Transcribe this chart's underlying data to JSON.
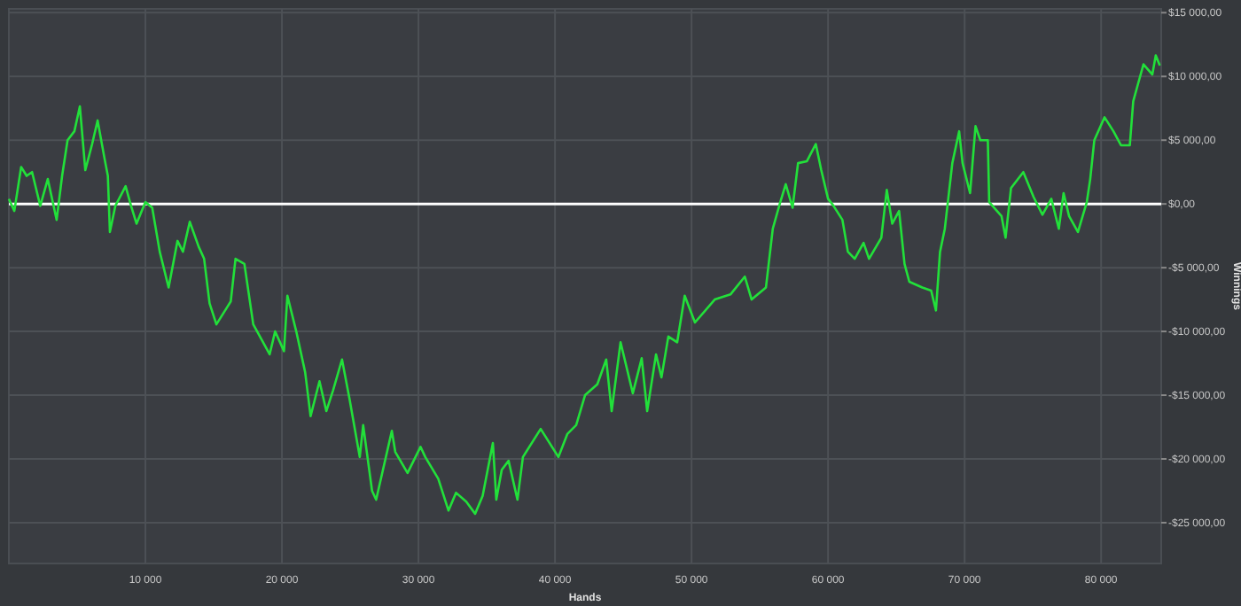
{
  "chart_data": {
    "type": "line",
    "xlabel": "Hands",
    "ylabel": "Winnings",
    "xlim": [
      0,
      84400
    ],
    "ylim": [
      -28200,
      15300
    ],
    "xticks": [
      {
        "value": 10000,
        "label": "10 000"
      },
      {
        "value": 20000,
        "label": "20 000"
      },
      {
        "value": 30000,
        "label": "30 000"
      },
      {
        "value": 40000,
        "label": "40 000"
      },
      {
        "value": 50000,
        "label": "50 000"
      },
      {
        "value": 60000,
        "label": "60 000"
      },
      {
        "value": 70000,
        "label": "70 000"
      },
      {
        "value": 80000,
        "label": "80 000"
      }
    ],
    "yticks": [
      {
        "value": 15000,
        "label": "$15 000,00"
      },
      {
        "value": 10000,
        "label": "$10 000,00"
      },
      {
        "value": 5000,
        "label": "$5 000,00"
      },
      {
        "value": 0,
        "label": "$0,00"
      },
      {
        "value": -5000,
        "label": "-$5 000,00"
      },
      {
        "value": -10000,
        "label": "-$10 000,00"
      },
      {
        "value": -15000,
        "label": "-$15 000,00"
      },
      {
        "value": -20000,
        "label": "-$20 000,00"
      },
      {
        "value": -25000,
        "label": "-$25 000,00"
      }
    ],
    "grid": true,
    "marker": "none",
    "line_style": "solid",
    "ref_lines": [
      {
        "axis": "y",
        "value": 0,
        "color": "#ffffff"
      }
    ],
    "series": [
      {
        "color": "#22e03a",
        "x": [
          0,
          400,
          900,
          1300,
          1700,
          2300,
          2850,
          3500,
          3900,
          4300,
          4800,
          5200,
          5600,
          6100,
          6500,
          7000,
          7250,
          7400,
          7800,
          8550,
          8950,
          9350,
          10000,
          10500,
          11050,
          11700,
          12350,
          12750,
          13250,
          13900,
          14300,
          14700,
          15200,
          16250,
          16600,
          17250,
          17900,
          19100,
          19500,
          20150,
          20400,
          21050,
          21700,
          22100,
          22750,
          23250,
          23750,
          24400,
          24950,
          25700,
          25950,
          26600,
          26900,
          28050,
          28300,
          29200,
          30150,
          30500,
          31450,
          32200,
          32750,
          33500,
          34150,
          34700,
          35450,
          35700,
          36100,
          36600,
          37250,
          37650,
          38950,
          40250,
          40900,
          41550,
          42200,
          43100,
          43750,
          44150,
          44650,
          44800,
          45700,
          46350,
          46750,
          47400,
          47800,
          48300,
          48950,
          49500,
          50250,
          51700,
          52850,
          53900,
          54400,
          55450,
          55950,
          56500,
          56900,
          57400,
          57800,
          58450,
          59100,
          59500,
          60000,
          60400,
          61050,
          61450,
          61950,
          62600,
          63000,
          63900,
          64300,
          64700,
          65200,
          65600,
          65950,
          66900,
          67550,
          67900,
          68200,
          68550,
          69100,
          69600,
          69850,
          70400,
          70800,
          71150,
          71700,
          71800,
          72700,
          73000,
          73400,
          74300,
          75050,
          75700,
          76350,
          76900,
          77250,
          77650,
          78300,
          78950,
          79200,
          79500,
          80250,
          80900,
          81450,
          82100,
          82350,
          82750,
          83100,
          83750,
          84000,
          84300
        ],
        "values": [
          400,
          -550,
          2900,
          2200,
          2500,
          -150,
          1950,
          -1250,
          2200,
          5000,
          5700,
          7650,
          2650,
          4700,
          6550,
          3600,
          2200,
          -2200,
          -150,
          1400,
          -150,
          -1550,
          150,
          -300,
          -3750,
          -6550,
          -2900,
          -3750,
          -1400,
          -3350,
          -4300,
          -7800,
          -9450,
          -7650,
          -4300,
          -4700,
          -9450,
          -11800,
          -10000,
          -11550,
          -7200,
          -10000,
          -13200,
          -16650,
          -13900,
          -16250,
          -14600,
          -12200,
          -15300,
          -19850,
          -17350,
          -22500,
          -23200,
          -17800,
          -19450,
          -21100,
          -19050,
          -19850,
          -21550,
          -24050,
          -22650,
          -23350,
          -24300,
          -22900,
          -18750,
          -23200,
          -20850,
          -20150,
          -23200,
          -19850,
          -17650,
          -19850,
          -18050,
          -17350,
          -15000,
          -14150,
          -12200,
          -16250,
          -12100,
          -10850,
          -14850,
          -12100,
          -16250,
          -11800,
          -13600,
          -10400,
          -10850,
          -7200,
          -9300,
          -7500,
          -7100,
          -5700,
          -7500,
          -6550,
          -1950,
          150,
          1550,
          -300,
          3200,
          3350,
          4700,
          2650,
          400,
          -150,
          -1250,
          -3750,
          -4300,
          -3050,
          -4300,
          -2650,
          1100,
          -1550,
          -550,
          -4700,
          -6100,
          -6550,
          -6800,
          -8350,
          -3750,
          -1950,
          3200,
          5700,
          3200,
          850,
          6100,
          5000,
          5000,
          150,
          -950,
          -2650,
          1250,
          2500,
          550,
          -850,
          400,
          -1950,
          850,
          -950,
          -2200,
          150,
          1950,
          5000,
          6800,
          5700,
          4600,
          4600,
          8050,
          9600,
          10950,
          10150,
          11650,
          10850
        ]
      }
    ]
  }
}
